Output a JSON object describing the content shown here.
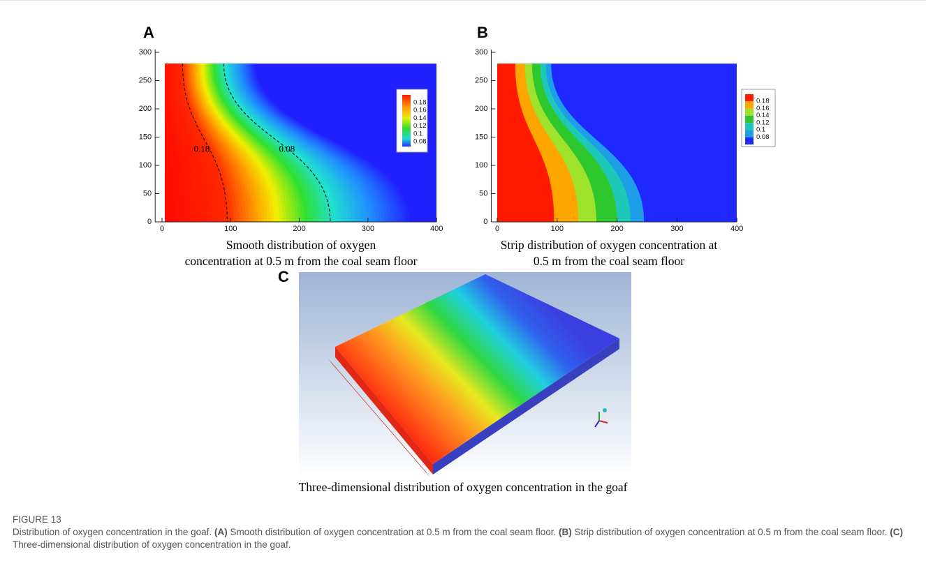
{
  "panels": [
    {
      "label": "A",
      "xticks": [
        0,
        100,
        200,
        300,
        400
      ],
      "yticks": [
        0,
        50,
        100,
        150,
        200,
        250,
        300
      ],
      "legend": [
        0.18,
        0.16,
        0.14,
        0.12,
        0.1,
        0.08
      ],
      "contour_labels": [
        0.18,
        0.08
      ],
      "caption": [
        "Smooth distribution of oxygen",
        "concentration at 0.5 m from the coal seam floor"
      ]
    },
    {
      "label": "B",
      "xticks": [
        0,
        100,
        200,
        300,
        400
      ],
      "yticks": [
        0,
        50,
        100,
        150,
        200,
        250,
        300
      ],
      "legend": [
        0.18,
        0.16,
        0.14,
        0.12,
        0.1,
        0.08
      ],
      "colors": [
        "#ff1a00",
        "#ffa500",
        "#9ee22c",
        "#2ec82e",
        "#1ec8b8",
        "#1e9ee6",
        "#1e28ff"
      ],
      "caption": [
        "Strip distribution of oxygen concentration at",
        "0.5 m from the coal seam floor"
      ]
    },
    {
      "label": "C",
      "caption": [
        "Three-dimensional distribution of oxygen concentration in the goaf"
      ]
    }
  ],
  "figure": {
    "label": "FIGURE 13",
    "caption": {
      "intro": "Distribution of oxygen concentration in the goaf.",
      "parts": [
        {
          "label": "(A)",
          "text": "Smooth distribution of oxygen concentration at 0.5 m from the coal seam floor."
        },
        {
          "label": "(B)",
          "text": "Strip distribution of oxygen concentration at 0.5 m from the coal seam floor."
        },
        {
          "label": "(C)",
          "text": "Three-dimensional distribution of oxygen concentration in the goaf."
        }
      ]
    }
  }
}
